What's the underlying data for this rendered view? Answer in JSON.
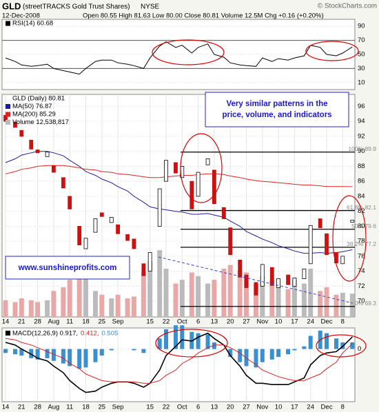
{
  "header": {
    "symbol": "GLD",
    "name": "(streetTRACKS Gold Trust Shares)",
    "exchange": "NYSE",
    "copyright": "© StockCharts.com",
    "date": "12-Dec-2008",
    "quote": "Open 80.55 High 81.63 Low 80.00 Close 80.81 Volume 12.5M Chg +0.16 (+0.20%)"
  },
  "chart_data": [
    {
      "type": "line",
      "series": [
        {
          "name": "RSI(14) 60.68",
          "color": "#000000",
          "values": [
            45,
            40,
            35,
            33,
            34,
            36,
            30,
            27,
            25,
            22,
            30,
            40,
            42,
            42,
            38,
            36,
            34,
            30,
            45,
            62,
            68,
            60,
            63,
            52,
            60,
            65,
            50,
            46,
            38,
            35,
            34,
            33,
            45,
            40,
            44,
            42,
            45,
            48,
            63,
            60,
            50,
            48,
            52,
            60.68
          ]
        }
      ],
      "ylim": [
        0,
        100
      ],
      "yticks": [
        90,
        70,
        50,
        30,
        10
      ],
      "reference_lines": [
        70,
        30
      ]
    },
    {
      "type": "candlestick",
      "categories": [
        "14",
        null,
        "21",
        null,
        "28",
        null,
        "Aug",
        null,
        "11",
        null,
        "18",
        null,
        "25",
        null,
        "Sep",
        null,
        null,
        null,
        "15",
        null,
        "22",
        null,
        "Oct",
        null,
        "6",
        null,
        "13",
        null,
        "20",
        null,
        "27",
        null,
        "Nov",
        null,
        "10",
        null,
        "17",
        null,
        "24",
        null,
        "Dec",
        null,
        "8",
        null
      ],
      "price_name": "GLD (Daily) 80.81",
      "open": [
        94.8,
        93.9,
        92.8,
        91.5,
        90.2,
        89.3,
        88.1,
        86.5,
        84.0,
        80.0,
        77.0,
        79.2,
        81.8,
        80.5,
        80.2,
        78.9,
        78.3,
        75.0,
        74.0,
        80.0,
        86.0,
        88.5,
        86.5,
        86.0,
        84.0,
        88.2,
        87.5,
        82.5,
        79.8,
        75.5,
        73.5,
        72.5,
        72.0,
        74.5,
        71.8,
        73.5,
        72.0,
        73.0,
        75.0,
        81.0,
        79.0,
        76.5,
        75.0,
        80.55
      ],
      "close": [
        94.0,
        93.2,
        92.0,
        90.3,
        89.8,
        89.9,
        87.2,
        85.1,
        82.3,
        77.5,
        78.4,
        81.0,
        81.3,
        81.2,
        79.0,
        78.1,
        77.0,
        73.4,
        76.5,
        85.0,
        88.8,
        87.1,
        88.0,
        82.3,
        87.2,
        89.0,
        83.0,
        81.0,
        76.2,
        73.2,
        71.8,
        70.8,
        74.9,
        72.1,
        73.0,
        72.2,
        73.1,
        74.3,
        80.1,
        79.8,
        76.2,
        75.1,
        76.0,
        80.81
      ],
      "series": [
        {
          "name": "MA(50) 76.87",
          "color": "#1c1c9c",
          "values": [
            88.5,
            89.0,
            89.5,
            89.8,
            90.0,
            90.0,
            89.8,
            89.4,
            88.8,
            88.0,
            87.3,
            86.8,
            86.3,
            85.8,
            85.3,
            84.7,
            84.0,
            83.2,
            82.6,
            82.3,
            82.2,
            82.0,
            81.9,
            81.6,
            81.6,
            81.7,
            81.5,
            81.2,
            80.7,
            80.0,
            79.3,
            78.7,
            78.3,
            77.8,
            77.4,
            77.0,
            76.7,
            76.4,
            76.4,
            76.5,
            76.4,
            76.5,
            76.6,
            76.87
          ]
        },
        {
          "name": "MA(200) 85.29",
          "color": "#dd2222",
          "values": [
            87.0,
            87.3,
            87.6,
            87.8,
            88.0,
            88.1,
            88.1,
            88.1,
            88.0,
            87.8,
            87.6,
            87.5,
            87.3,
            87.2,
            87.0,
            86.9,
            86.8,
            86.6,
            86.5,
            86.5,
            86.6,
            86.7,
            86.8,
            86.8,
            86.9,
            87.0,
            87.0,
            86.9,
            86.7,
            86.5,
            86.3,
            86.1,
            86.0,
            85.9,
            85.8,
            85.7,
            85.6,
            85.5,
            85.5,
            85.4,
            85.3,
            85.3,
            85.3,
            85.29
          ]
        }
      ],
      "volume": {
        "name": "Volume 12,538,817",
        "ylim": [
          0,
          120000000
        ],
        "values": [
          9000000,
          8000000,
          10000000,
          9000000,
          8000000,
          9000000,
          14000000,
          16000000,
          20000000,
          28000000,
          22000000,
          14000000,
          12000000,
          10000000,
          12000000,
          10000000,
          11000000,
          24000000,
          30000000,
          36000000,
          26000000,
          18000000,
          20000000,
          24000000,
          22000000,
          18000000,
          20000000,
          26000000,
          28000000,
          25000000,
          24000000,
          18000000,
          22000000,
          20000000,
          16000000,
          15000000,
          20000000,
          18000000,
          26000000,
          14000000,
          16000000,
          12000000,
          13000000,
          12538817
        ]
      },
      "ylim": [
        67.9,
        97.6
      ],
      "yticks": [
        96,
        94,
        92,
        90,
        88,
        86,
        84,
        82,
        80,
        78,
        76,
        74,
        72,
        70
      ],
      "fib_levels": [
        {
          "value": 89.9,
          "label": "100% 89.9"
        },
        {
          "value": 82.1,
          "label": "61.8% 82.1"
        },
        {
          "value": 79.6,
          "label": "50% 79.6"
        },
        {
          "value": 77.2,
          "label": "38.2% 77.2"
        },
        {
          "value": 69.3,
          "label": "0% 69.3"
        }
      ],
      "annotation": [
        "Very similar patterns in the",
        "price, volume, and indicators"
      ],
      "watermark": "www.sunshineprofits.com"
    },
    {
      "type": "macd",
      "categories": [
        "14",
        null,
        "21",
        null,
        "28",
        null,
        "Aug",
        null,
        "11",
        null,
        "18",
        null,
        "25",
        null,
        "Sep",
        null,
        null,
        null,
        "15",
        null,
        "22",
        null,
        "Oct",
        null,
        "6",
        null,
        "13",
        null,
        "20",
        null,
        "27",
        null,
        "Nov",
        null,
        "10",
        null,
        "17",
        null,
        "24",
        null,
        "Dec",
        null,
        "8",
        null
      ],
      "series": [
        {
          "name": "MACD(12,26,9) 0.917,",
          "color": "#000000",
          "values": [
            0.5,
            0.3,
            0.0,
            -0.4,
            -0.7,
            -0.9,
            -1.3,
            -1.8,
            -2.4,
            -3.0,
            -3.3,
            -3.2,
            -2.9,
            -2.6,
            -2.5,
            -2.5,
            -2.6,
            -2.9,
            -2.6,
            -1.6,
            -0.5,
            0.2,
            0.7,
            0.6,
            0.9,
            1.2,
            0.8,
            0.3,
            -0.5,
            -1.3,
            -2.0,
            -2.6,
            -2.6,
            -2.7,
            -2.7,
            -2.7,
            -2.5,
            -2.2,
            -1.2,
            -0.5,
            -0.3,
            -0.2,
            0.2,
            0.917
          ]
        },
        {
          "name": "0.412,",
          "color": "#dd2222",
          "values": [
            0.8,
            0.7,
            0.5,
            0.3,
            0.1,
            -0.2,
            -0.4,
            -0.7,
            -1.1,
            -1.5,
            -1.9,
            -2.2,
            -2.4,
            -2.5,
            -2.5,
            -2.5,
            -2.5,
            -2.6,
            -2.6,
            -2.4,
            -2.0,
            -1.6,
            -1.1,
            -0.7,
            -0.3,
            0.1,
            0.3,
            0.3,
            0.1,
            -0.3,
            -0.7,
            -1.2,
            -1.6,
            -1.9,
            -2.1,
            -2.3,
            -2.4,
            -2.4,
            -2.2,
            -1.9,
            -1.5,
            -1.0,
            -0.3,
            0.412
          ]
        },
        {
          "name": "0.505",
          "color": "#3a8fd0",
          "kind": "histogram",
          "values": [
            -0.3,
            -0.4,
            -0.5,
            -0.7,
            -0.8,
            -0.7,
            -0.9,
            -1.1,
            -1.3,
            -1.5,
            -1.4,
            -1.0,
            -0.5,
            -0.1,
            0.0,
            0.0,
            -0.1,
            -0.3,
            0.0,
            0.8,
            1.5,
            1.8,
            1.8,
            1.3,
            1.2,
            1.1,
            0.5,
            0.0,
            -0.6,
            -1.0,
            -1.3,
            -1.4,
            -1.0,
            -0.8,
            -0.6,
            -0.4,
            -0.1,
            0.2,
            1.0,
            1.4,
            1.2,
            0.8,
            0.5,
            0.505
          ]
        }
      ],
      "ylim": [
        -4,
        1.6
      ],
      "yticks": [
        0
      ]
    }
  ]
}
